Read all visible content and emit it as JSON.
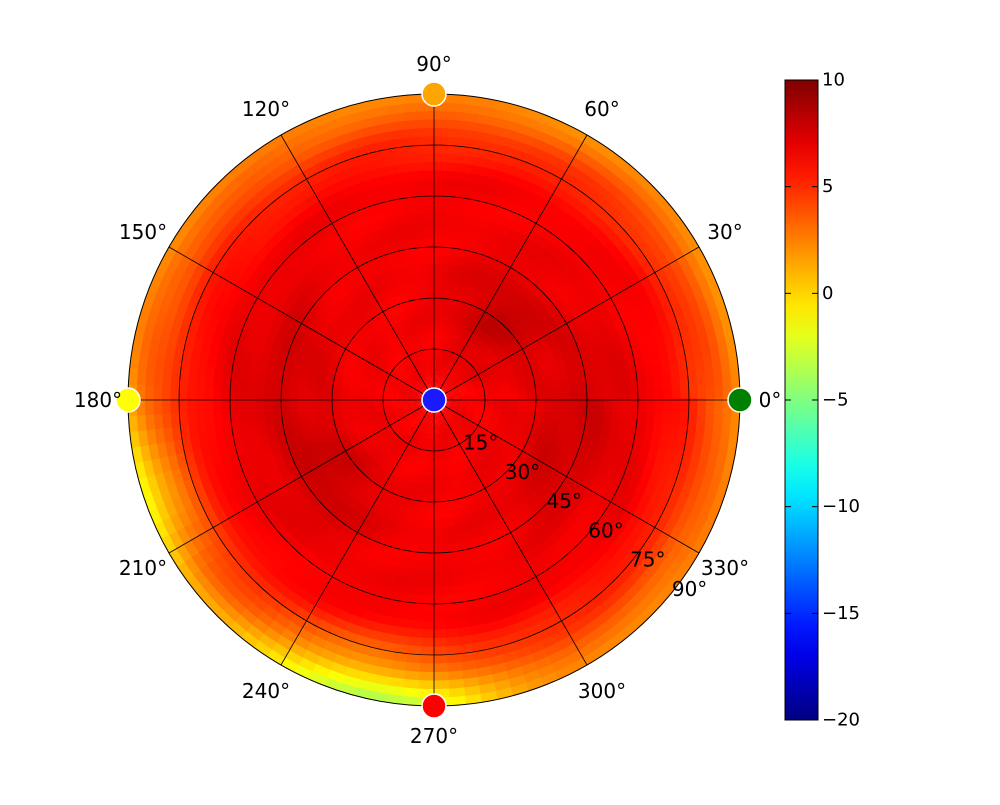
{
  "chart_data": {
    "type": "heatmap",
    "projection": "polar",
    "title": "",
    "angle_labels": [
      "0°",
      "30°",
      "60°",
      "90°",
      "120°",
      "150°",
      "180°",
      "210°",
      "240°",
      "270°",
      "300°",
      "330°"
    ],
    "angle_values_deg": [
      0,
      30,
      60,
      90,
      120,
      150,
      180,
      210,
      240,
      270,
      300,
      330
    ],
    "radial_labels": [
      "15°",
      "30°",
      "45°",
      "60°",
      "75°",
      "90°"
    ],
    "radial_values": [
      15,
      30,
      45,
      60,
      75,
      90
    ],
    "rlim": [
      0,
      90
    ],
    "radial_label_angle_deg": -35,
    "grid": true,
    "colormap": "jet",
    "colorbar": {
      "position": "right",
      "vmin": -20,
      "vmax": 10,
      "ticks": [
        10,
        5,
        0,
        -5,
        -10,
        -15,
        -20
      ],
      "tick_labels": [
        "10",
        "5",
        "0",
        "−5",
        "−10",
        "−15",
        "−20"
      ]
    },
    "field": {
      "description_values": "approximate values in colorbar units at (zenith angle, azimuth)",
      "center_value": 6.5,
      "hot_spots": [
        {
          "theta": 30,
          "phi": 50,
          "value": 9.2
        },
        {
          "theta": 38,
          "phi": 215,
          "value": 9.0
        },
        {
          "theta": 45,
          "phi": 165,
          "value": 8.3
        },
        {
          "theta": 40,
          "phi": 330,
          "value": 8.0
        },
        {
          "theta": 45,
          "phi": 0,
          "value": 8.0
        }
      ],
      "edge_value_default": 2.0,
      "edge_cold_spot": {
        "phi": 258,
        "value": -4.0
      },
      "edge_cold_spot_2": {
        "phi": 200,
        "value": -1.5
      }
    },
    "markers": [
      {
        "theta": 0,
        "phi": 0,
        "value": -17,
        "color": "#1a1aff"
      },
      {
        "theta": 90,
        "phi": 0,
        "value": -7,
        "color": "#008000"
      },
      {
        "theta": 90,
        "phi": 90,
        "value": 2.5,
        "color": "#ffa500"
      },
      {
        "theta": 90,
        "phi": 180,
        "value": 0,
        "color": "#ffff00"
      },
      {
        "theta": 90,
        "phi": 270,
        "value": 8,
        "color": "#ff0000"
      }
    ]
  }
}
